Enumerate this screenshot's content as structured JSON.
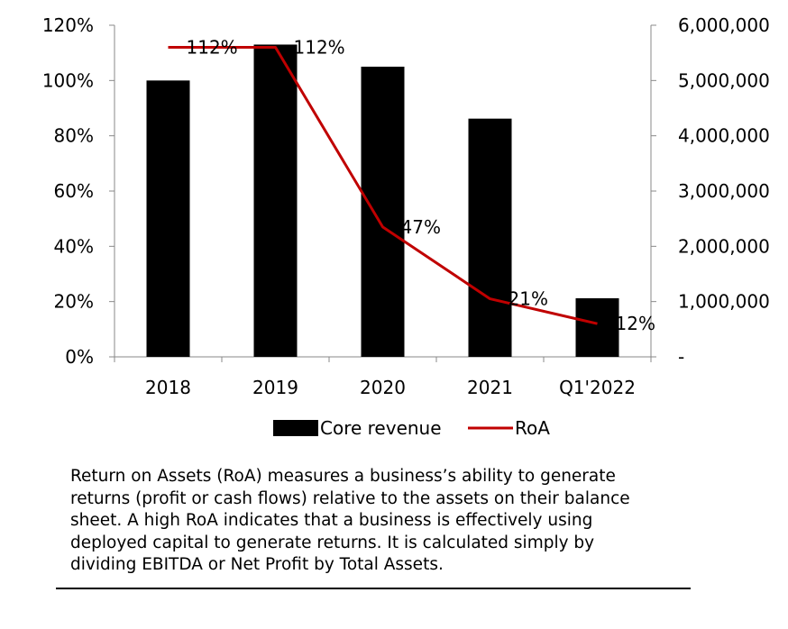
{
  "chart_data": {
    "type": "bar",
    "categories": [
      "2018",
      "2019",
      "2020",
      "2021",
      "Q1'2022"
    ],
    "series": [
      {
        "name": "Core revenue",
        "type": "bar",
        "axis": "right",
        "values": [
          5000000,
          5650000,
          5250000,
          4310000,
          1060000
        ],
        "color": "#000000"
      },
      {
        "name": "RoA",
        "type": "line",
        "axis": "left",
        "values": [
          112,
          112,
          47,
          21,
          12
        ],
        "labels": [
          "112%",
          "112%",
          "47%",
          "21%",
          "12%"
        ],
        "color": "#C00000"
      }
    ],
    "y_left": {
      "min": 0,
      "max": 120,
      "ticks": [
        "0%",
        "20%",
        "40%",
        "60%",
        "80%",
        "100%",
        "120%"
      ]
    },
    "y_right": {
      "min": 0,
      "max": 6000000,
      "ticks": [
        "-",
        "1,000,000",
        "2,000,000",
        "3,000,000",
        "4,000,000",
        "5,000,000",
        "6,000,000"
      ]
    },
    "grid": false,
    "legend": "bottom-center"
  },
  "description": {
    "lines": [
      "Return on Assets (RoA) measures a business’s ability to generate",
      "returns (profit or cash flows) relative to the assets on their balance",
      "sheet.  A high RoA indicates that a business is effectively using",
      "deployed capital to generate returns.  It is calculated simply by",
      "dividing EBITDA or Net Profit by Total Assets."
    ]
  }
}
